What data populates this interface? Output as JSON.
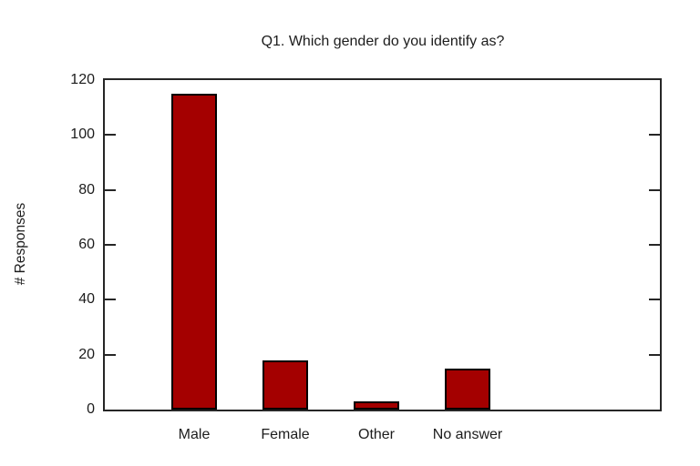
{
  "chart_data": {
    "type": "bar",
    "title": "Q1. Which gender do you identify as?",
    "categories": [
      "Male",
      "Female",
      "Other",
      "No answer"
    ],
    "values": [
      115,
      18,
      3,
      15
    ],
    "xlabel": "",
    "ylabel": "# Responses",
    "ylim": [
      0,
      120
    ],
    "yticks": [
      0,
      20,
      40,
      60,
      80,
      100,
      120
    ],
    "grid": false,
    "legend": "none",
    "colors": {
      "bar_fill": "#a40000",
      "bar_border": "#000000",
      "frame": "#262626",
      "text": "#1c1c1c",
      "background": "#ffffff"
    }
  }
}
